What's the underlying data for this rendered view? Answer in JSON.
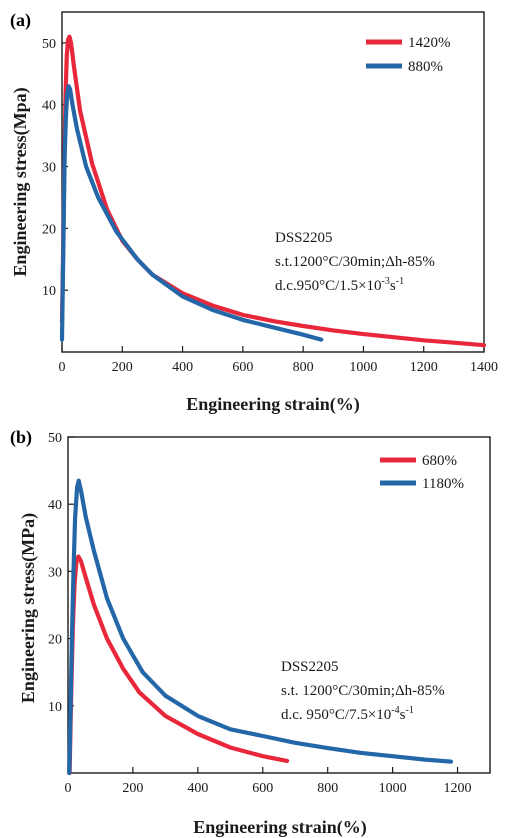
{
  "chart_data": [
    {
      "type": "line",
      "panel_label": "(a)",
      "xlabel": "Engineering strain(%)",
      "ylabel": "Engineering stress(Mpa)",
      "xlim": [
        0,
        1400
      ],
      "ylim": [
        0,
        55
      ],
      "x_ticks": [
        0,
        200,
        400,
        600,
        800,
        1000,
        1200,
        1400
      ],
      "y_ticks": [
        10,
        20,
        30,
        40,
        50
      ],
      "legend_position": "top-right",
      "annotation": {
        "line1": "DSS2205",
        "line2": "s.t.1200°C/30min;",
        "line2b": "h-85%",
        "delta": "Δ",
        "line3_pre": "d.c.950°C/1.5×10",
        "line3_exp1": "-3",
        "line3_mid": "s",
        "line3_exp2": "-1"
      },
      "series": [
        {
          "name": "1420%",
          "color": "#e8283a",
          "points": [
            [
              0,
              5
            ],
            [
              3,
              14
            ],
            [
              6,
              24
            ],
            [
              9,
              34
            ],
            [
              12,
              42
            ],
            [
              16,
              48
            ],
            [
              20,
              50.5
            ],
            [
              25,
              51
            ],
            [
              30,
              50
            ],
            [
              40,
              46
            ],
            [
              60,
              39
            ],
            [
              100,
              30.5
            ],
            [
              150,
              23
            ],
            [
              200,
              18
            ],
            [
              250,
              15
            ],
            [
              300,
              12.5
            ],
            [
              400,
              9.5
            ],
            [
              500,
              7.5
            ],
            [
              600,
              6
            ],
            [
              700,
              5
            ],
            [
              800,
              4.2
            ],
            [
              900,
              3.5
            ],
            [
              1000,
              2.9
            ],
            [
              1100,
              2.4
            ],
            [
              1200,
              1.9
            ],
            [
              1300,
              1.5
            ],
            [
              1400,
              1.1
            ]
          ]
        },
        {
          "name": "880%",
          "color": "#2467a8",
          "points": [
            [
              0,
              2
            ],
            [
              3,
              12
            ],
            [
              6,
              22
            ],
            [
              9,
              32
            ],
            [
              13,
              38
            ],
            [
              17,
              41.5
            ],
            [
              22,
              43
            ],
            [
              27,
              42.5
            ],
            [
              35,
              40
            ],
            [
              50,
              36
            ],
            [
              80,
              30
            ],
            [
              120,
              25
            ],
            [
              180,
              19.5
            ],
            [
              250,
              15
            ],
            [
              300,
              12.5
            ],
            [
              400,
              9
            ],
            [
              500,
              6.8
            ],
            [
              600,
              5.2
            ],
            [
              700,
              4
            ],
            [
              800,
              2.8
            ],
            [
              860,
              2
            ]
          ]
        }
      ]
    },
    {
      "type": "line",
      "panel_label": "(b)",
      "xlabel": "Engineering strain(%)",
      "ylabel": "Engineering stress(MPa)",
      "xlim": [
        0,
        1300
      ],
      "ylim": [
        0,
        50
      ],
      "x_ticks": [
        0,
        200,
        400,
        600,
        800,
        1000,
        1200
      ],
      "y_ticks": [
        10,
        20,
        30,
        40,
        50
      ],
      "legend_position": "top-right",
      "annotation": {
        "line1": "DSS2205",
        "line2": "s.t. 1200°C/30min;",
        "line2b": "h-85%",
        "delta": "Δ",
        "line3_pre": "d.c. 950°C/7.5×10",
        "line3_exp1": "-4",
        "line3_mid": "s",
        "line3_exp2": "-1"
      },
      "series": [
        {
          "name": "680%",
          "color": "#e8283a",
          "points": [
            [
              5,
              0
            ],
            [
              10,
              12
            ],
            [
              15,
              22
            ],
            [
              20,
              28
            ],
            [
              26,
              31.5
            ],
            [
              32,
              32.2
            ],
            [
              40,
              31.5
            ],
            [
              55,
              29
            ],
            [
              80,
              25
            ],
            [
              120,
              20
            ],
            [
              170,
              15.5
            ],
            [
              220,
              12
            ],
            [
              300,
              8.5
            ],
            [
              400,
              5.8
            ],
            [
              500,
              3.8
            ],
            [
              600,
              2.5
            ],
            [
              675,
              1.8
            ]
          ]
        },
        {
          "name": "1180%",
          "color": "#2467a8",
          "points": [
            [
              4,
              0
            ],
            [
              8,
              10
            ],
            [
              12,
              20
            ],
            [
              17,
              30
            ],
            [
              22,
              38
            ],
            [
              28,
              42.5
            ],
            [
              33,
              43.5
            ],
            [
              40,
              42
            ],
            [
              55,
              38
            ],
            [
              80,
              33
            ],
            [
              120,
              26
            ],
            [
              170,
              20
            ],
            [
              230,
              15
            ],
            [
              300,
              11.5
            ],
            [
              400,
              8.5
            ],
            [
              500,
              6.5
            ],
            [
              600,
              5.5
            ],
            [
              700,
              4.5
            ],
            [
              800,
              3.7
            ],
            [
              900,
              3
            ],
            [
              1000,
              2.5
            ],
            [
              1100,
              2
            ],
            [
              1180,
              1.7
            ]
          ]
        }
      ]
    }
  ]
}
